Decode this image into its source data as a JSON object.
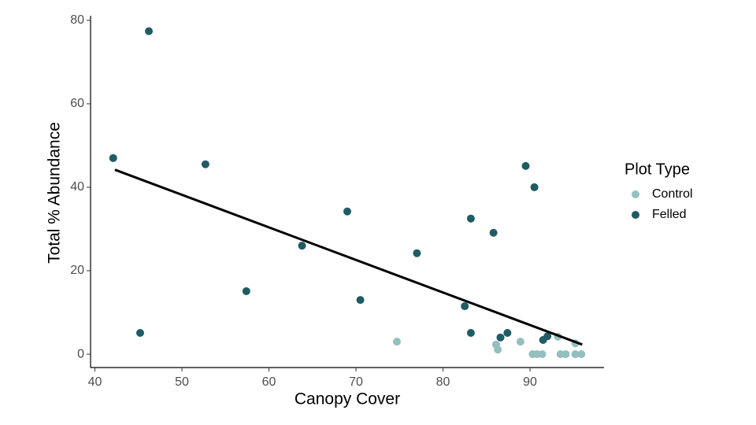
{
  "chart_data": {
    "type": "scatter",
    "x_label": "Canopy Cover",
    "y_label": "Total % Abundance",
    "legend_title": "Plot Type",
    "legend": "right",
    "xlim": [
      39.5,
      98.5
    ],
    "ylim": [
      -3.2,
      81.1
    ],
    "xticks": [
      40,
      50,
      60,
      70,
      80,
      90
    ],
    "yticks": [
      0,
      20,
      40,
      60,
      80
    ],
    "series": [
      {
        "name": "Control",
        "color": "#93c0bf",
        "x": [
          74.7,
          86.1,
          86.3,
          88.9,
          90.3,
          90.8,
          91.4,
          93.2,
          93.5,
          94.1,
          95.2,
          95.2,
          95.9
        ],
        "values": [
          3.0,
          2.3,
          1.1,
          3.0,
          0,
          0,
          0,
          4.2,
          0,
          0,
          2.6,
          0,
          0
        ]
      },
      {
        "name": "Felled",
        "color": "#1f5c63",
        "x": [
          42.1,
          46.2,
          45.2,
          52.7,
          57.4,
          63.8,
          69.0,
          70.5,
          77.0,
          83.2,
          82.5,
          83.2,
          85.8,
          89.5,
          90.5,
          86.6,
          87.4,
          91.5,
          92.0
        ],
        "values": [
          47.0,
          77.4,
          5.1,
          45.5,
          15.1,
          26.0,
          34.2,
          13.0,
          24.2,
          32.5,
          11.5,
          5.1,
          29.1,
          45.1,
          40.0,
          4.0,
          5.1,
          3.4,
          4.3
        ]
      }
    ],
    "fit_line": {
      "color": "#000000",
      "x": [
        42.3,
        96.0
      ],
      "values": [
        44.2,
        2.3
      ]
    }
  }
}
